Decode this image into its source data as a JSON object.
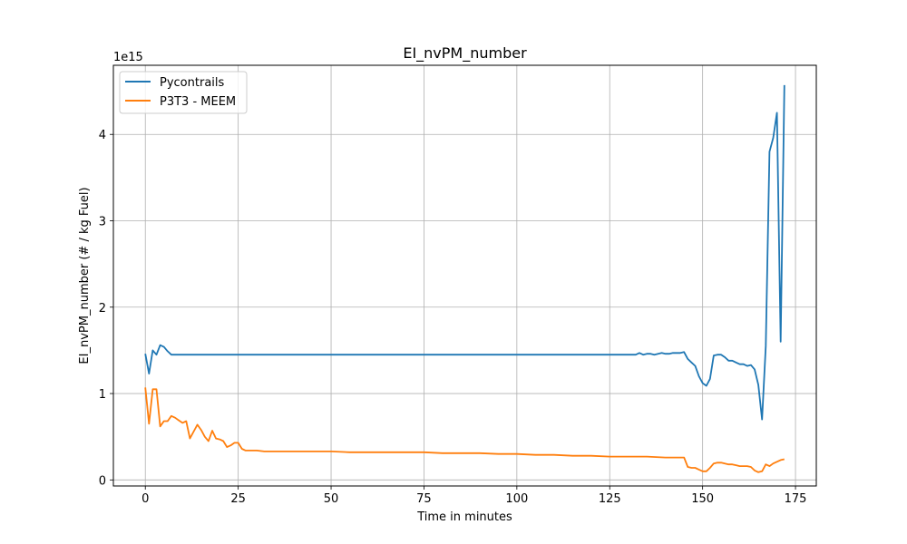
{
  "chart_data": {
    "type": "line",
    "title": "EI_nvPM_number",
    "xlabel": "Time in minutes",
    "ylabel": "EI_nvPM_number (# / kg Fuel)",
    "y_offset_label": "1e15",
    "xlim": [
      -8.6,
      180.6
    ],
    "ylim": [
      -0.07,
      4.8
    ],
    "xticks": [
      0,
      25,
      50,
      75,
      100,
      125,
      150,
      175
    ],
    "yticks": [
      0,
      1,
      2,
      3,
      4
    ],
    "grid": true,
    "legend_position": "upper-left",
    "series": [
      {
        "name": "Pycontrails",
        "color": "#1f77b4",
        "x": [
          0,
          1,
          2,
          3,
          4,
          5,
          6,
          7,
          8,
          10,
          20,
          40,
          60,
          80,
          100,
          120,
          131,
          132,
          133,
          134,
          135,
          136,
          137,
          138,
          139,
          140,
          141,
          142,
          143,
          144,
          145,
          146,
          147,
          148,
          149,
          150,
          151,
          152,
          153,
          154,
          155,
          156,
          157,
          158,
          159,
          160,
          161,
          162,
          163,
          164,
          165,
          166,
          167,
          168,
          169,
          170,
          171,
          172
        ],
        "y": [
          1.46,
          1.23,
          1.5,
          1.45,
          1.56,
          1.54,
          1.49,
          1.45,
          1.45,
          1.45,
          1.45,
          1.45,
          1.45,
          1.45,
          1.45,
          1.45,
          1.45,
          1.45,
          1.47,
          1.45,
          1.46,
          1.46,
          1.45,
          1.46,
          1.47,
          1.46,
          1.46,
          1.47,
          1.47,
          1.47,
          1.48,
          1.4,
          1.36,
          1.32,
          1.2,
          1.12,
          1.09,
          1.17,
          1.44,
          1.45,
          1.45,
          1.42,
          1.38,
          1.38,
          1.36,
          1.34,
          1.34,
          1.32,
          1.33,
          1.28,
          1.1,
          0.7,
          1.55,
          3.8,
          3.96,
          4.25,
          1.6,
          4.57
        ]
      },
      {
        "name": "P3T3 - MEEM",
        "color": "#ff7f0e",
        "x": [
          0,
          1,
          2,
          3,
          4,
          5,
          6,
          7,
          8,
          9,
          10,
          11,
          12,
          13,
          14,
          15,
          16,
          17,
          18,
          19,
          20,
          21,
          22,
          23,
          24,
          25,
          26,
          27,
          28,
          30,
          32,
          34,
          36,
          38,
          40,
          45,
          50,
          55,
          60,
          65,
          70,
          75,
          80,
          85,
          90,
          95,
          100,
          105,
          110,
          115,
          120,
          125,
          130,
          135,
          140,
          145,
          146,
          147,
          148,
          149,
          150,
          151,
          152,
          153,
          154,
          155,
          156,
          157,
          158,
          159,
          160,
          161,
          162,
          163,
          164,
          165,
          166,
          167,
          168,
          169,
          170,
          171,
          172
        ],
        "y": [
          1.07,
          0.65,
          1.05,
          1.05,
          0.62,
          0.68,
          0.68,
          0.74,
          0.72,
          0.69,
          0.66,
          0.68,
          0.48,
          0.56,
          0.64,
          0.58,
          0.5,
          0.45,
          0.57,
          0.48,
          0.47,
          0.45,
          0.38,
          0.4,
          0.43,
          0.43,
          0.36,
          0.34,
          0.34,
          0.34,
          0.33,
          0.33,
          0.33,
          0.33,
          0.33,
          0.33,
          0.33,
          0.32,
          0.32,
          0.32,
          0.32,
          0.32,
          0.31,
          0.31,
          0.31,
          0.3,
          0.3,
          0.29,
          0.29,
          0.28,
          0.28,
          0.27,
          0.27,
          0.27,
          0.26,
          0.26,
          0.15,
          0.14,
          0.14,
          0.12,
          0.1,
          0.1,
          0.14,
          0.19,
          0.2,
          0.2,
          0.19,
          0.18,
          0.18,
          0.17,
          0.16,
          0.16,
          0.16,
          0.15,
          0.11,
          0.09,
          0.1,
          0.18,
          0.16,
          0.19,
          0.21,
          0.23,
          0.24
        ]
      }
    ]
  }
}
